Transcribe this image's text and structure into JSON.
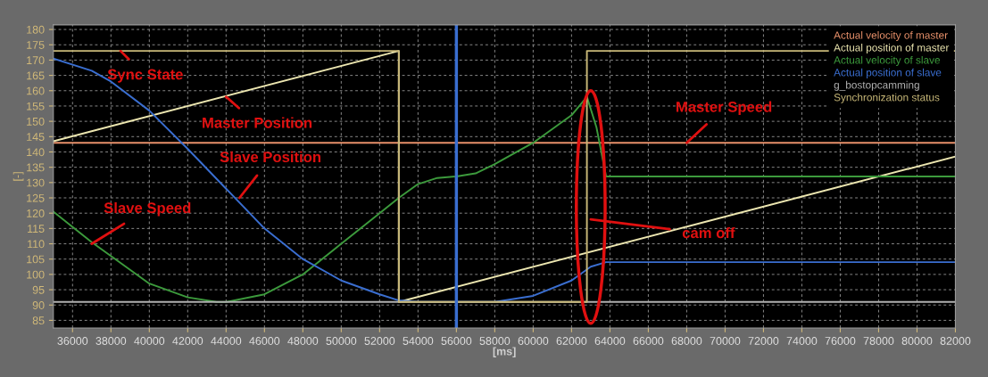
{
  "chart_data": {
    "type": "line",
    "xlabel": "[ms]",
    "ylabel": "[-]",
    "xlim": [
      35000,
      82000
    ],
    "ylim": [
      82.5,
      181.5
    ],
    "xticks": [
      36000,
      38000,
      40000,
      42000,
      44000,
      46000,
      48000,
      50000,
      52000,
      54000,
      56000,
      58000,
      60000,
      62000,
      64000,
      66000,
      68000,
      70000,
      72000,
      74000,
      76000,
      78000,
      80000,
      82000
    ],
    "yticks": [
      85,
      90,
      95,
      100,
      105,
      110,
      115,
      120,
      125,
      130,
      135,
      140,
      145,
      150,
      155,
      160,
      165,
      170,
      175,
      180
    ],
    "grid": true,
    "legend": "top right",
    "marker": "none",
    "line_style": "solid",
    "series": [
      {
        "name": "Actual velocity of master",
        "color": "#e8906a",
        "x": [
          35000,
          82000
        ],
        "values": [
          143,
          143
        ]
      },
      {
        "name": "Actual position of master",
        "color": "#ece6b0",
        "x": [
          35000,
          53000,
          53000,
          82000
        ],
        "values": [
          143.5,
          173,
          91,
          138.5
        ]
      },
      {
        "name": "Actual velocity of slave",
        "color": "#3c9a3c",
        "x": [
          35000,
          37000,
          38000,
          40000,
          42000,
          43500,
          44000,
          46000,
          48000,
          50000,
          52000,
          53000,
          54000,
          55000,
          56000,
          57000,
          58000,
          60000,
          62000,
          62800,
          63300,
          63800,
          82000
        ],
        "values": [
          120.5,
          110.5,
          106,
          97,
          92.5,
          91,
          91,
          93.5,
          100,
          110,
          120,
          125,
          129.5,
          131.5,
          132,
          133,
          136,
          143,
          152,
          158,
          148,
          132,
          132
        ]
      },
      {
        "name": "Actual position of slave",
        "color": "#3a6ed0",
        "x": [
          35000,
          37000,
          38000,
          40000,
          42000,
          44000,
          46000,
          48000,
          50000,
          52000,
          53000,
          54000,
          58000,
          60000,
          62000,
          63000,
          63800,
          82000
        ],
        "values": [
          170.5,
          166.5,
          163,
          153.5,
          141,
          128,
          115,
          105,
          98,
          93.5,
          91.5,
          91,
          91,
          93,
          98,
          102.5,
          104,
          104
        ]
      },
      {
        "name": "g_bostopcamming",
        "color": "#b0b0b0",
        "x": [
          35000,
          82000
        ],
        "values": [
          91,
          91
        ]
      },
      {
        "name": "Synchronization status",
        "color": "#c8b878",
        "x": [
          35000,
          53000,
          53000,
          62800,
          62800,
          82000
        ],
        "values": [
          173,
          173,
          91,
          91,
          173,
          173
        ]
      }
    ],
    "ref_lines": [
      {
        "axis": "x",
        "value": 56000,
        "color": "#3a6ed0"
      }
    ],
    "annotations": [
      {
        "text": "Sync State",
        "x": 38500,
        "y": 173
      },
      {
        "text": "Master Position",
        "x": 44000,
        "y": 158
      },
      {
        "text": "Slave Position",
        "x": 44700,
        "y": 125
      },
      {
        "text": "Slave Speed",
        "x": 37000,
        "y": 110
      },
      {
        "text": "Master Speed",
        "x": 68000,
        "y": 143
      },
      {
        "text": "cam off",
        "x": 63000,
        "y": 118
      }
    ]
  }
}
